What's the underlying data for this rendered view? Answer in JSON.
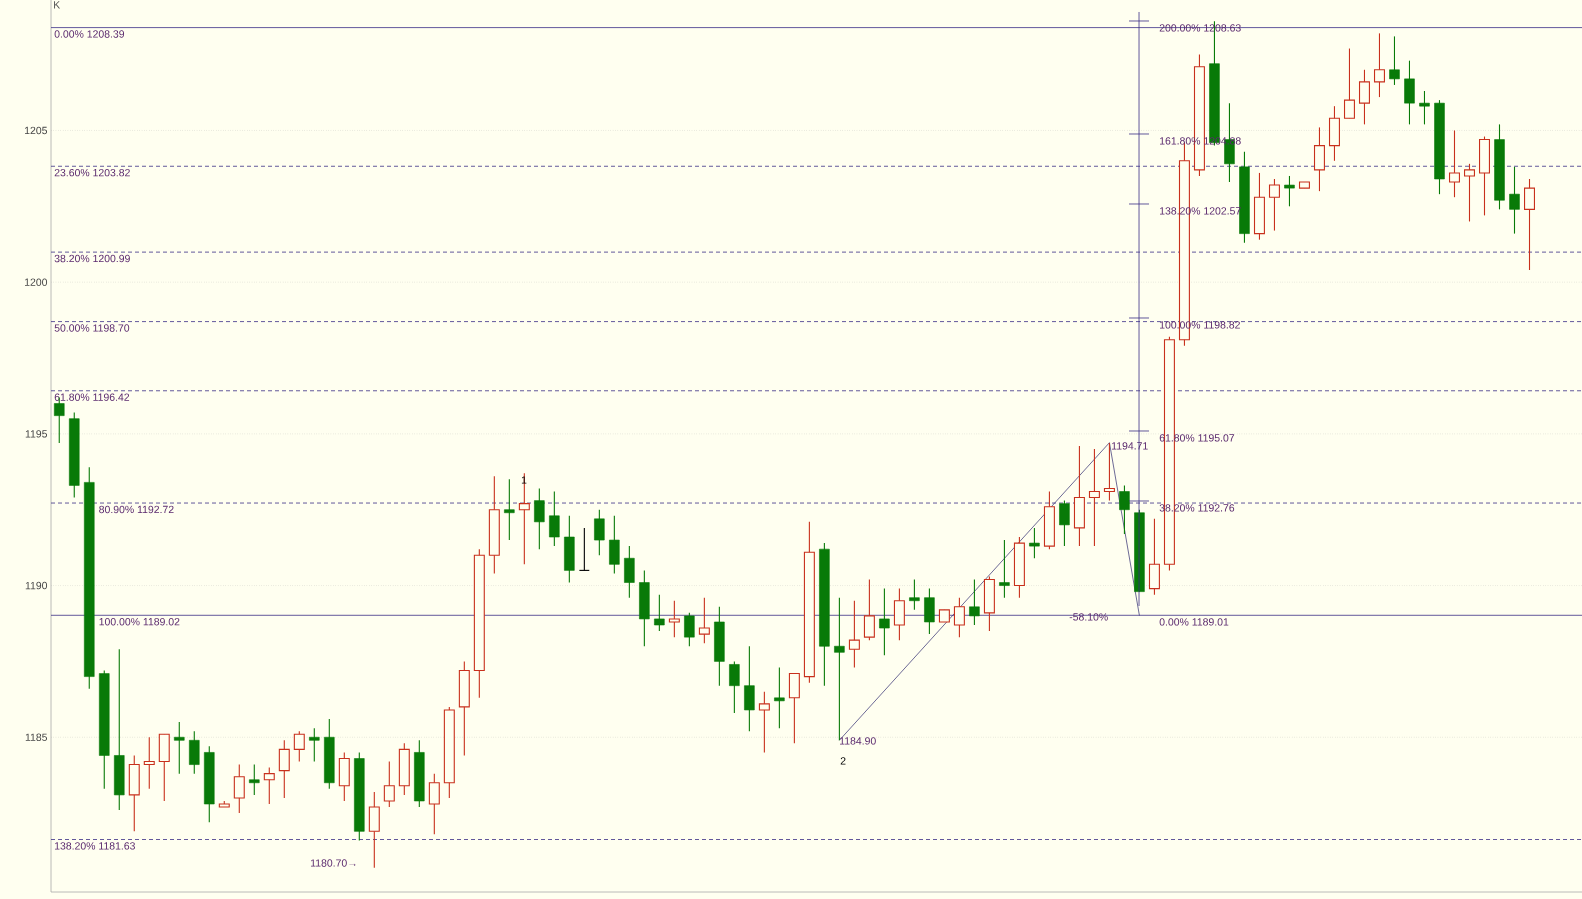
{
  "chart_data": {
    "type": "candlestick",
    "categories": [
      null,
      null,
      null,
      null,
      null,
      null,
      null,
      null,
      null,
      null,
      null,
      null,
      null,
      null,
      null,
      null,
      null,
      null,
      null,
      null,
      null,
      null,
      null,
      null,
      null,
      null,
      null,
      null,
      null,
      null,
      null,
      null,
      null,
      null,
      null,
      null,
      null,
      null,
      null,
      null,
      null,
      null,
      null,
      null,
      null,
      null,
      null,
      null,
      null,
      null,
      null,
      null,
      null,
      null,
      null,
      null,
      null,
      null,
      null,
      null,
      null,
      null,
      null,
      null,
      null,
      null,
      null,
      null,
      null,
      null,
      null,
      null,
      null,
      null,
      null,
      null,
      null,
      null,
      null,
      null,
      null,
      null,
      null,
      null,
      null,
      null,
      null,
      null,
      null,
      null,
      null,
      null,
      null,
      null,
      null,
      null,
      null,
      null,
      null
    ],
    "ohlc": [
      [
        1196.0,
        1196.2,
        1194.7,
        1195.6
      ],
      [
        1195.5,
        1195.7,
        1192.9,
        1193.3
      ],
      [
        1193.4,
        1193.9,
        1186.6,
        1187.0
      ],
      [
        1187.1,
        1187.2,
        1183.3,
        1184.4
      ],
      [
        1184.4,
        1187.9,
        1182.6,
        1183.1
      ],
      [
        1183.1,
        1184.4,
        1181.9,
        1184.1
      ],
      [
        1184.1,
        1185.0,
        1183.3,
        1184.2
      ],
      [
        1184.2,
        1185.1,
        1182.9,
        1185.1
      ],
      [
        1185.0,
        1185.5,
        1183.8,
        1184.9
      ],
      [
        1184.9,
        1185.2,
        1183.8,
        1184.1
      ],
      [
        1184.5,
        1184.7,
        1182.2,
        1182.8
      ],
      [
        1182.7,
        1182.9,
        1182.7,
        1182.8
      ],
      [
        1183.0,
        1184.1,
        1182.5,
        1183.7
      ],
      [
        1183.6,
        1184.1,
        1183.1,
        1183.5
      ],
      [
        1183.6,
        1184.0,
        1182.8,
        1183.8
      ],
      [
        1183.9,
        1184.9,
        1183.0,
        1184.6
      ],
      [
        1184.6,
        1185.2,
        1184.2,
        1185.1
      ],
      [
        1185.0,
        1185.3,
        1184.2,
        1184.9
      ],
      [
        1185.0,
        1185.6,
        1183.3,
        1183.5
      ],
      [
        1183.4,
        1184.5,
        1182.9,
        1184.3
      ],
      [
        1184.3,
        1184.5,
        1181.6,
        1181.9
      ],
      [
        1181.9,
        1183.2,
        1180.7,
        1182.7
      ],
      [
        1182.9,
        1184.2,
        1182.7,
        1183.4
      ],
      [
        1183.4,
        1184.8,
        1183.1,
        1184.6
      ],
      [
        1184.5,
        1184.9,
        1182.7,
        1182.9
      ],
      [
        1182.8,
        1183.8,
        1181.8,
        1183.5
      ],
      [
        1183.5,
        1186.0,
        1183.0,
        1185.9
      ],
      [
        1186.0,
        1187.5,
        1184.4,
        1187.2
      ],
      [
        1187.2,
        1191.2,
        1186.3,
        1191.0
      ],
      [
        1191.0,
        1193.6,
        1190.4,
        1192.5
      ],
      [
        1192.5,
        1193.5,
        1191.5,
        1192.4
      ],
      [
        1192.5,
        1193.7,
        1190.7,
        1192.7
      ],
      [
        1192.8,
        1193.2,
        1191.2,
        1192.1
      ],
      [
        1192.3,
        1193.1,
        1191.3,
        1191.6
      ],
      [
        1191.6,
        1192.3,
        1190.1,
        1190.5
      ],
      [
        1190.5,
        1191.9,
        1190.5,
        1190.5
      ],
      [
        1192.2,
        1192.5,
        1191.0,
        1191.5
      ],
      [
        1191.5,
        1192.3,
        1190.4,
        1190.7
      ],
      [
        1190.9,
        1191.3,
        1189.6,
        1190.1
      ],
      [
        1190.1,
        1190.5,
        1188.0,
        1188.9
      ],
      [
        1188.9,
        1189.7,
        1188.5,
        1188.7
      ],
      [
        1188.8,
        1189.5,
        1188.3,
        1188.9
      ],
      [
        1189.0,
        1189.1,
        1188.0,
        1188.3
      ],
      [
        1188.4,
        1189.6,
        1188.1,
        1188.6
      ],
      [
        1188.8,
        1189.3,
        1186.7,
        1187.5
      ],
      [
        1187.4,
        1187.5,
        1185.8,
        1186.7
      ],
      [
        1186.7,
        1188.0,
        1185.2,
        1185.9
      ],
      [
        1185.9,
        1186.5,
        1184.5,
        1186.1
      ],
      [
        1186.3,
        1187.3,
        1185.3,
        1186.2
      ],
      [
        1186.3,
        1187.1,
        1184.8,
        1187.1
      ],
      [
        1187.0,
        1192.1,
        1186.8,
        1191.1
      ],
      [
        1191.2,
        1191.4,
        1186.7,
        1188.0
      ],
      [
        1188.0,
        1189.6,
        1184.9,
        1187.8
      ],
      [
        1187.9,
        1189.5,
        1187.3,
        1188.2
      ],
      [
        1188.3,
        1190.2,
        1188.2,
        1189.0
      ],
      [
        1188.9,
        1189.9,
        1187.7,
        1188.6
      ],
      [
        1188.7,
        1189.9,
        1188.2,
        1189.5
      ],
      [
        1189.6,
        1190.2,
        1189.2,
        1189.5
      ],
      [
        1189.6,
        1189.9,
        1188.4,
        1188.8
      ],
      [
        1188.8,
        1189.2,
        1188.8,
        1189.2
      ],
      [
        1188.7,
        1189.6,
        1188.3,
        1189.3
      ],
      [
        1189.3,
        1190.2,
        1188.7,
        1189.0
      ],
      [
        1189.1,
        1190.3,
        1188.5,
        1190.2
      ],
      [
        1190.1,
        1191.5,
        1189.6,
        1190.0
      ],
      [
        1190.0,
        1191.6,
        1189.6,
        1191.4
      ],
      [
        1191.4,
        1191.9,
        1190.9,
        1191.3
      ],
      [
        1191.3,
        1193.1,
        1191.2,
        1192.6
      ],
      [
        1192.7,
        1192.8,
        1191.3,
        1192.0
      ],
      [
        1191.9,
        1194.6,
        1191.3,
        1192.9
      ],
      [
        1192.9,
        1194.5,
        1191.3,
        1193.1
      ],
      [
        1193.1,
        1194.7,
        1192.8,
        1193.2
      ],
      [
        1193.1,
        1193.3,
        1191.7,
        1192.5
      ],
      [
        1192.4,
        1192.5,
        1189.8,
        1189.8
      ],
      [
        1189.9,
        1192.2,
        1189.7,
        1190.7
      ],
      [
        1190.7,
        1198.2,
        1190.5,
        1198.1
      ],
      [
        1198.1,
        1204.6,
        1197.9,
        1204.0
      ],
      [
        1203.7,
        1207.5,
        1203.5,
        1207.1
      ],
      [
        1207.2,
        1208.6,
        1204.5,
        1204.6
      ],
      [
        1204.7,
        1205.9,
        1203.3,
        1203.9
      ],
      [
        1203.8,
        1204.3,
        1201.3,
        1201.6
      ],
      [
        1201.6,
        1203.6,
        1201.4,
        1202.8
      ],
      [
        1202.8,
        1203.4,
        1201.7,
        1203.2
      ],
      [
        1203.2,
        1203.5,
        1202.5,
        1203.1
      ],
      [
        1203.1,
        1203.3,
        1203.1,
        1203.3
      ],
      [
        1203.7,
        1205.1,
        1203.0,
        1204.5
      ],
      [
        1204.5,
        1205.8,
        1204.0,
        1205.4
      ],
      [
        1205.4,
        1207.7,
        1205.4,
        1206.0
      ],
      [
        1205.9,
        1207.0,
        1205.2,
        1206.6
      ],
      [
        1206.6,
        1208.2,
        1206.1,
        1207.0
      ],
      [
        1207.0,
        1208.1,
        1206.5,
        1206.7
      ],
      [
        1206.7,
        1207.3,
        1205.2,
        1205.9
      ],
      [
        1205.9,
        1206.3,
        1205.2,
        1205.8
      ],
      [
        1205.9,
        1206.0,
        1202.9,
        1203.4
      ],
      [
        1203.3,
        1205.0,
        1202.8,
        1203.6
      ],
      [
        1203.5,
        1203.9,
        1202.0,
        1203.7
      ],
      [
        1203.6,
        1204.8,
        1202.2,
        1204.7
      ],
      [
        1204.7,
        1205.2,
        1202.4,
        1202.7
      ],
      [
        1202.9,
        1203.8,
        1201.6,
        1202.4
      ],
      [
        1202.4,
        1203.4,
        1200.4,
        1203.1
      ]
    ],
    "series": [
      {
        "type": "line",
        "color": "#2e2a6e",
        "values": [
          null,
          null,
          null,
          null,
          null,
          null,
          null,
          null,
          null,
          null,
          null,
          null,
          null,
          null,
          null,
          null,
          null,
          null,
          null,
          null,
          null,
          null,
          null,
          null,
          null,
          null,
          null,
          null,
          null,
          null,
          null,
          null,
          null,
          null,
          null,
          null,
          null,
          null,
          null,
          null,
          null,
          null,
          null,
          null,
          null,
          null,
          null,
          null,
          null,
          null,
          null,
          null,
          1184.9,
          null,
          null,
          null,
          null,
          null,
          null,
          null,
          null,
          null,
          null,
          null,
          null,
          null,
          null,
          null,
          null,
          null,
          1194.71,
          null,
          1189.01,
          null,
          null,
          null,
          null,
          null,
          null,
          null,
          null,
          null,
          null,
          null,
          null,
          null,
          null,
          null,
          null,
          null,
          null,
          null,
          null,
          null,
          null,
          null,
          null,
          null,
          null
        ]
      }
    ],
    "ylim": [
      1179.9,
      1209.3
    ],
    "yticks": [
      1185,
      1190,
      1195,
      1200,
      1205
    ],
    "grid": "y",
    "ref_lines": [
      {
        "axis": "y",
        "value": 1208.39,
        "label": "0.00% 1208.39",
        "color": "#3a2d85",
        "line_style": "solid"
      },
      {
        "axis": "y",
        "value": 1203.82,
        "label": "23.60% 1203.82",
        "color": "#3a2d85",
        "line_style": "dashed"
      },
      {
        "axis": "y",
        "value": 1200.99,
        "label": "38.20% 1200.99",
        "color": "#3a2d85",
        "line_style": "dashed"
      },
      {
        "axis": "y",
        "value": 1198.7,
        "label": "50.00% 1198.70",
        "color": "#3a2d85",
        "line_style": "dashed"
      },
      {
        "axis": "y",
        "value": 1196.42,
        "label": "61.80% 1196.42",
        "color": "#3a2d85",
        "line_style": "dashed"
      },
      {
        "axis": "y",
        "value": 1192.72,
        "label": "80.90% 1192.72",
        "color": "#3a2d85",
        "line_style": "dashed"
      },
      {
        "axis": "y",
        "value": 1189.02,
        "label": "100.00% 1189.02",
        "color": "#3a2d85",
        "line_style": "solid"
      },
      {
        "axis": "y",
        "value": 1181.63,
        "label": "138.20% 1181.63",
        "color": "#3a2d85",
        "line_style": "dashed"
      }
    ],
    "annotations": [
      "K",
      "1",
      "1184.90",
      "2",
      "1194.71",
      "1180.70→",
      "-58.10%",
      "200.00%   1208.63",
      "161.80%   1204.88",
      "138.20%   1202.57",
      "100.00%   1198.82",
      "61.80%   1195.07",
      "38.20%   1192.76",
      "0.00%   1189.01"
    ]
  }
}
